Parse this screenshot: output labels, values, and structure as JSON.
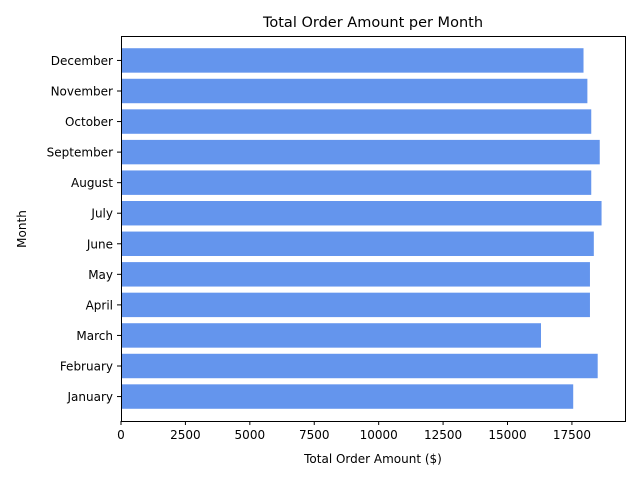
{
  "chart_data": {
    "type": "bar",
    "orientation": "horizontal",
    "title": "Total Order Amount per Month",
    "xlabel": "Total Order Amount ($)",
    "ylabel": "Month",
    "categories": [
      "January",
      "February",
      "March",
      "April",
      "May",
      "June",
      "July",
      "August",
      "September",
      "October",
      "November",
      "December"
    ],
    "values": [
      17550,
      18500,
      16300,
      18200,
      18200,
      18350,
      18650,
      18250,
      18580,
      18250,
      18100,
      17950
    ],
    "xlim": [
      0,
      19560
    ],
    "xticks": [
      0,
      2500,
      5000,
      7500,
      10000,
      12500,
      15000,
      17500
    ],
    "bar_color": "#6495ed",
    "grid": false,
    "legend": "none"
  }
}
